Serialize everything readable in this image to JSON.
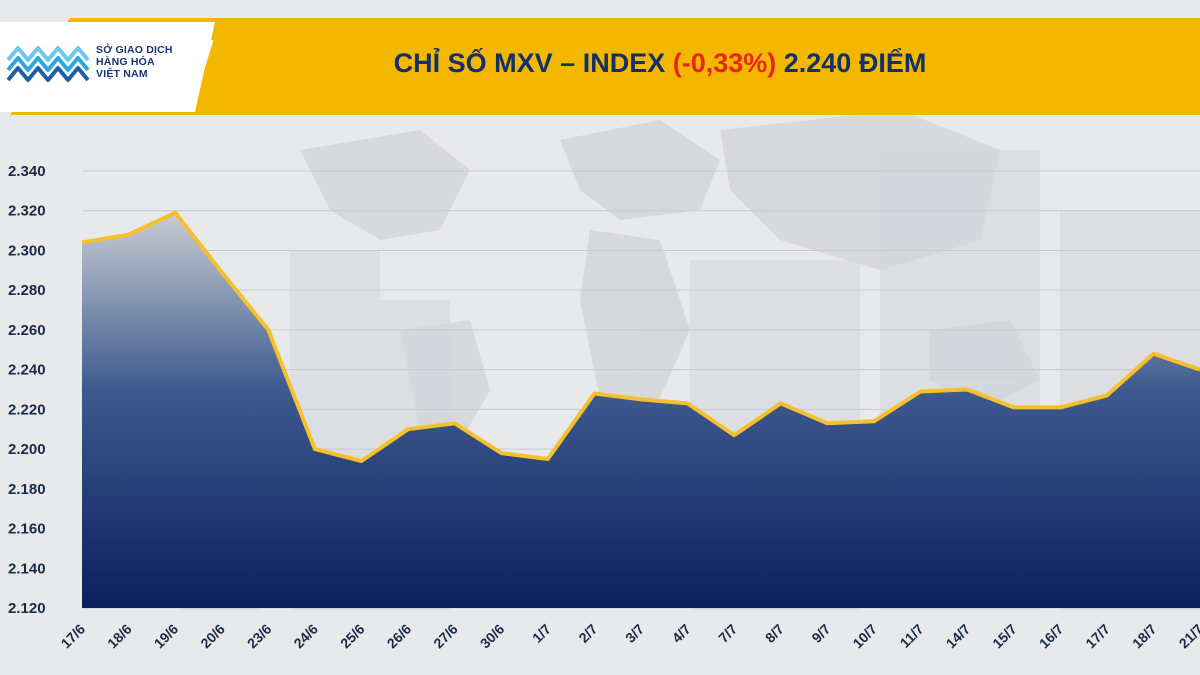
{
  "header": {
    "logo_lines": [
      "SỞ GIAO DỊCH",
      "HÀNG HÓA",
      "VIỆT NAM"
    ],
    "title_prefix": "CHỈ SỐ MXV – INDEX ",
    "title_change": "(-0,33%)",
    "title_suffix": " 2.240 ĐIỂM"
  },
  "colors": {
    "banner": "#f3b700",
    "title": "#13306b",
    "change": "#e8261c",
    "line": "#f5c02a",
    "area_top": "#c9ccd3",
    "area_bottom": "#0c1f5e"
  },
  "icons": {
    "logo": "mxv-logo-icon"
  },
  "chart_data": {
    "type": "area",
    "ylim": [
      2120,
      2340
    ],
    "yticks": [
      "2.120",
      "2.140",
      "2.160",
      "2.180",
      "2.200",
      "2.220",
      "2.240",
      "2.260",
      "2.280",
      "2.300",
      "2.320",
      "2.340"
    ],
    "ytick_values": [
      2120,
      2140,
      2160,
      2180,
      2200,
      2220,
      2240,
      2260,
      2280,
      2300,
      2320,
      2340
    ],
    "categories": [
      "17/6",
      "18/6",
      "19/6",
      "20/6",
      "23/6",
      "24/6",
      "25/6",
      "26/6",
      "27/6",
      "30/6",
      "1/7",
      "2/7",
      "3/7",
      "4/7",
      "7/7",
      "8/7",
      "9/7",
      "10/7",
      "11/7",
      "14/7",
      "15/7",
      "16/7",
      "17/7",
      "18/7",
      "21/7"
    ],
    "values": [
      2304,
      2308,
      2319,
      2289,
      2260,
      2200,
      2194,
      2210,
      2213,
      2198,
      2195,
      2228,
      2225,
      2223,
      2207,
      2223,
      2213,
      2214,
      2229,
      2230,
      2221,
      2221,
      2227,
      2248,
      2240
    ],
    "grid": true,
    "legend": "none"
  }
}
